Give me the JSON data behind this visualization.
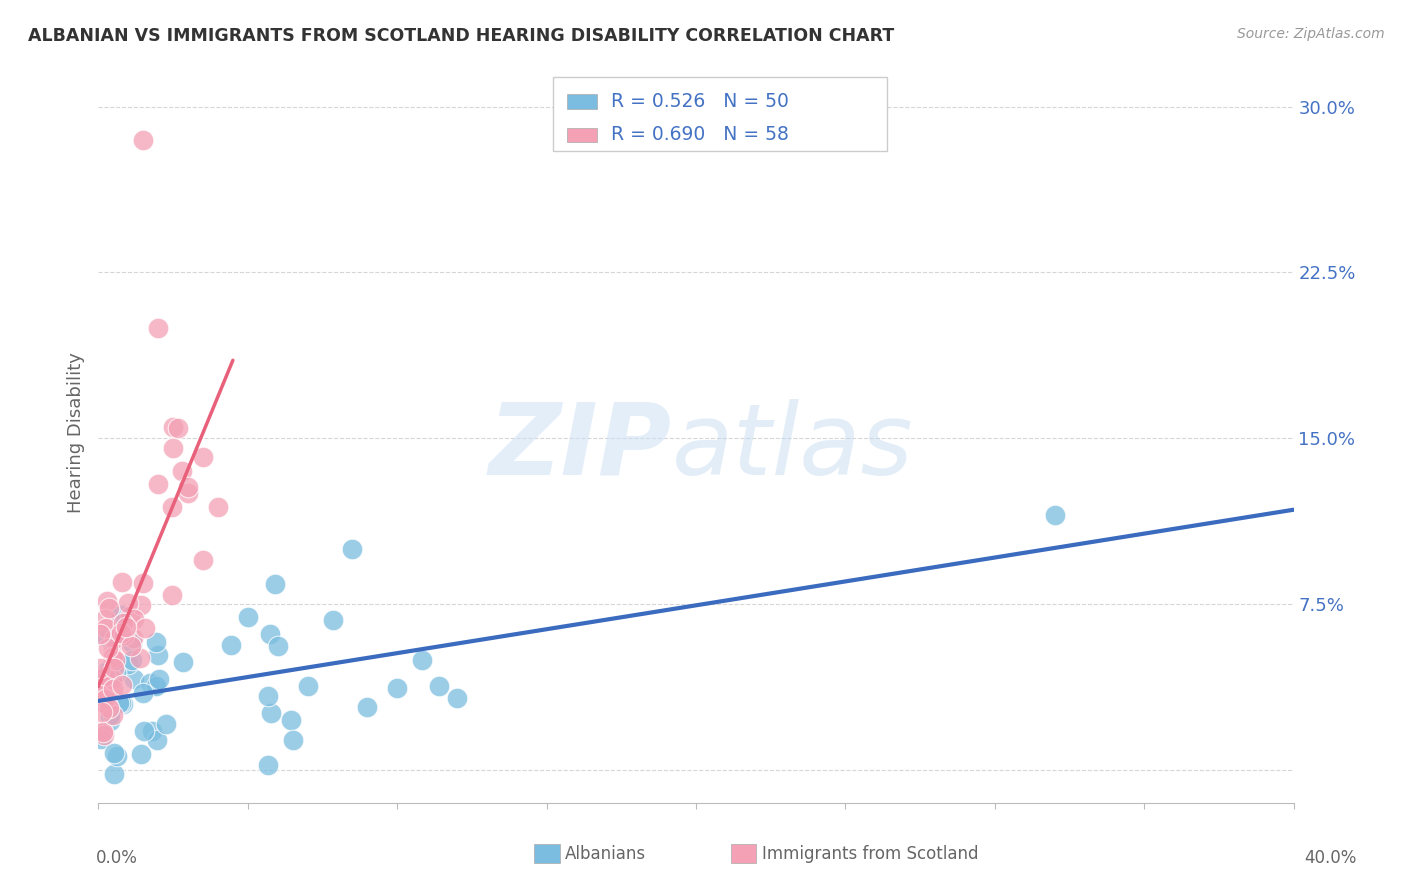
{
  "title": "ALBANIAN VS IMMIGRANTS FROM SCOTLAND HEARING DISABILITY CORRELATION CHART",
  "source": "Source: ZipAtlas.com",
  "ylabel": "Hearing Disability",
  "xlim": [
    0.0,
    0.4
  ],
  "ylim": [
    -0.015,
    0.32
  ],
  "ytick_vals": [
    0.0,
    0.075,
    0.15,
    0.225,
    0.3
  ],
  "ytick_labels": [
    "",
    "7.5%",
    "15.0%",
    "22.5%",
    "30.0%"
  ],
  "legend_r1": "R = 0.526   N = 50",
  "legend_r2": "R = 0.690   N = 58",
  "blue_color": "#7bbde0",
  "pink_color": "#f4a0b5",
  "blue_line_color": "#3a6bbf",
  "pink_line_color": "#e8607a",
  "text_color": "#4472c4",
  "background_color": "#ffffff",
  "grid_color": "#cccccc",
  "title_color": "#333333",
  "source_color": "#999999",
  "label_color": "#666666"
}
